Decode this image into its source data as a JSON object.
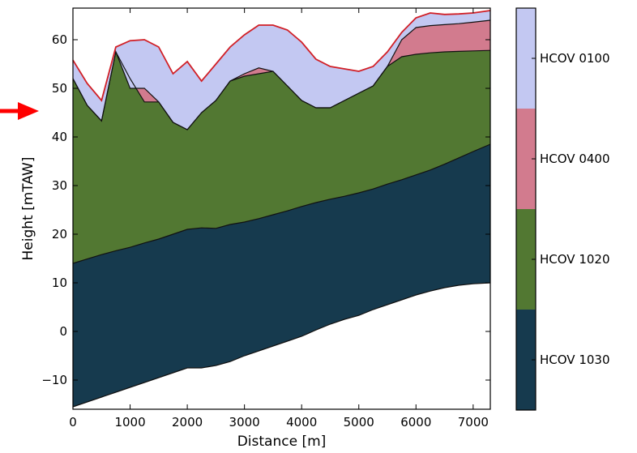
{
  "chart_data": {
    "type": "area",
    "xlabel": "Distance [m]",
    "ylabel": "Height [mTAW]",
    "xlim": [
      0,
      7300
    ],
    "ylim": [
      -16,
      66.5
    ],
    "x_ticks": [
      0,
      1000,
      2000,
      3000,
      4000,
      5000,
      6000,
      7000
    ],
    "y_ticks": [
      -10,
      0,
      10,
      20,
      30,
      40,
      50,
      60
    ],
    "y_tick_labels": [
      "−10",
      "0",
      "10",
      "20",
      "30",
      "40",
      "50",
      "60"
    ],
    "grid": false,
    "x": [
      0,
      250,
      500,
      750,
      1000,
      1250,
      1500,
      1750,
      2000,
      2250,
      2500,
      2750,
      3000,
      3250,
      3500,
      3750,
      4000,
      4250,
      4500,
      4750,
      5000,
      5250,
      5500,
      5750,
      6000,
      6250,
      6500,
      6750,
      7000,
      7300
    ],
    "layer_colors": {
      "HCOV 1030": "#163a4e",
      "HCOV 1020": "#527832",
      "HCOV 0400": "#d27b8e",
      "HCOV 0100": "#c3c8f2"
    },
    "boundaries": [
      {
        "name": "base",
        "values": [
          -15.5,
          -14.5,
          -13.5,
          -12.5,
          -11.5,
          -10.5,
          -9.5,
          -8.5,
          -7.5,
          -7.5,
          -7,
          -6.2,
          -5,
          -4,
          -3,
          -2,
          -1,
          0.3,
          1.5,
          2.5,
          3.3,
          4.5,
          5.5,
          6.5,
          7.5,
          8.3,
          9,
          9.5,
          9.8,
          10
        ]
      },
      {
        "name": "HCOV 1030",
        "values": [
          14,
          14.9,
          15.8,
          16.6,
          17.3,
          18.2,
          19,
          20,
          21,
          21.3,
          21.2,
          22,
          22.5,
          23.2,
          24,
          24.8,
          25.7,
          26.5,
          27.2,
          27.8,
          28.5,
          29.3,
          30.3,
          31.2,
          32.2,
          33.2,
          34.4,
          35.7,
          37,
          38.5
        ]
      },
      {
        "name": "HCOV 1020",
        "values": [
          52,
          46.5,
          43.3,
          57.5,
          52,
          47.2,
          47.2,
          43,
          41.5,
          45,
          47.5,
          51.5,
          52.5,
          53,
          53.5,
          50.5,
          47.5,
          46,
          46,
          47.5,
          49,
          50.5,
          54.5,
          56.5,
          57,
          57.3,
          57.5,
          57.6,
          57.7,
          57.8
        ]
      },
      {
        "name": "HCOV 0400",
        "values": [
          52,
          46.5,
          43.3,
          57.5,
          50,
          50,
          47.2,
          43,
          41.5,
          45,
          47.5,
          51.5,
          53,
          54.2,
          53.5,
          50.5,
          47.5,
          46,
          46,
          47.5,
          49,
          50.5,
          54.5,
          60,
          62.5,
          62.9,
          63.1,
          63.3,
          63.6,
          64
        ]
      },
      {
        "name": "HCOV 0100",
        "values": [
          55.8,
          51,
          47.5,
          58.5,
          59.8,
          60,
          58.5,
          53,
          55.5,
          51.5,
          55,
          58.5,
          61,
          63,
          63,
          62,
          59.5,
          56,
          54.5,
          54,
          53.5,
          54.5,
          57.5,
          61.5,
          64.5,
          65.5,
          65.2,
          65.3,
          65.5,
          66
        ]
      }
    ],
    "legend": {
      "placement": "right colorbar",
      "entries": [
        "HCOV 0100",
        "HCOV 0400",
        "HCOV 1020",
        "HCOV 1030"
      ]
    },
    "annotations": [
      {
        "type": "arrow",
        "color": "#ff0000",
        "pointing": "right",
        "at_y": 45
      }
    ]
  }
}
